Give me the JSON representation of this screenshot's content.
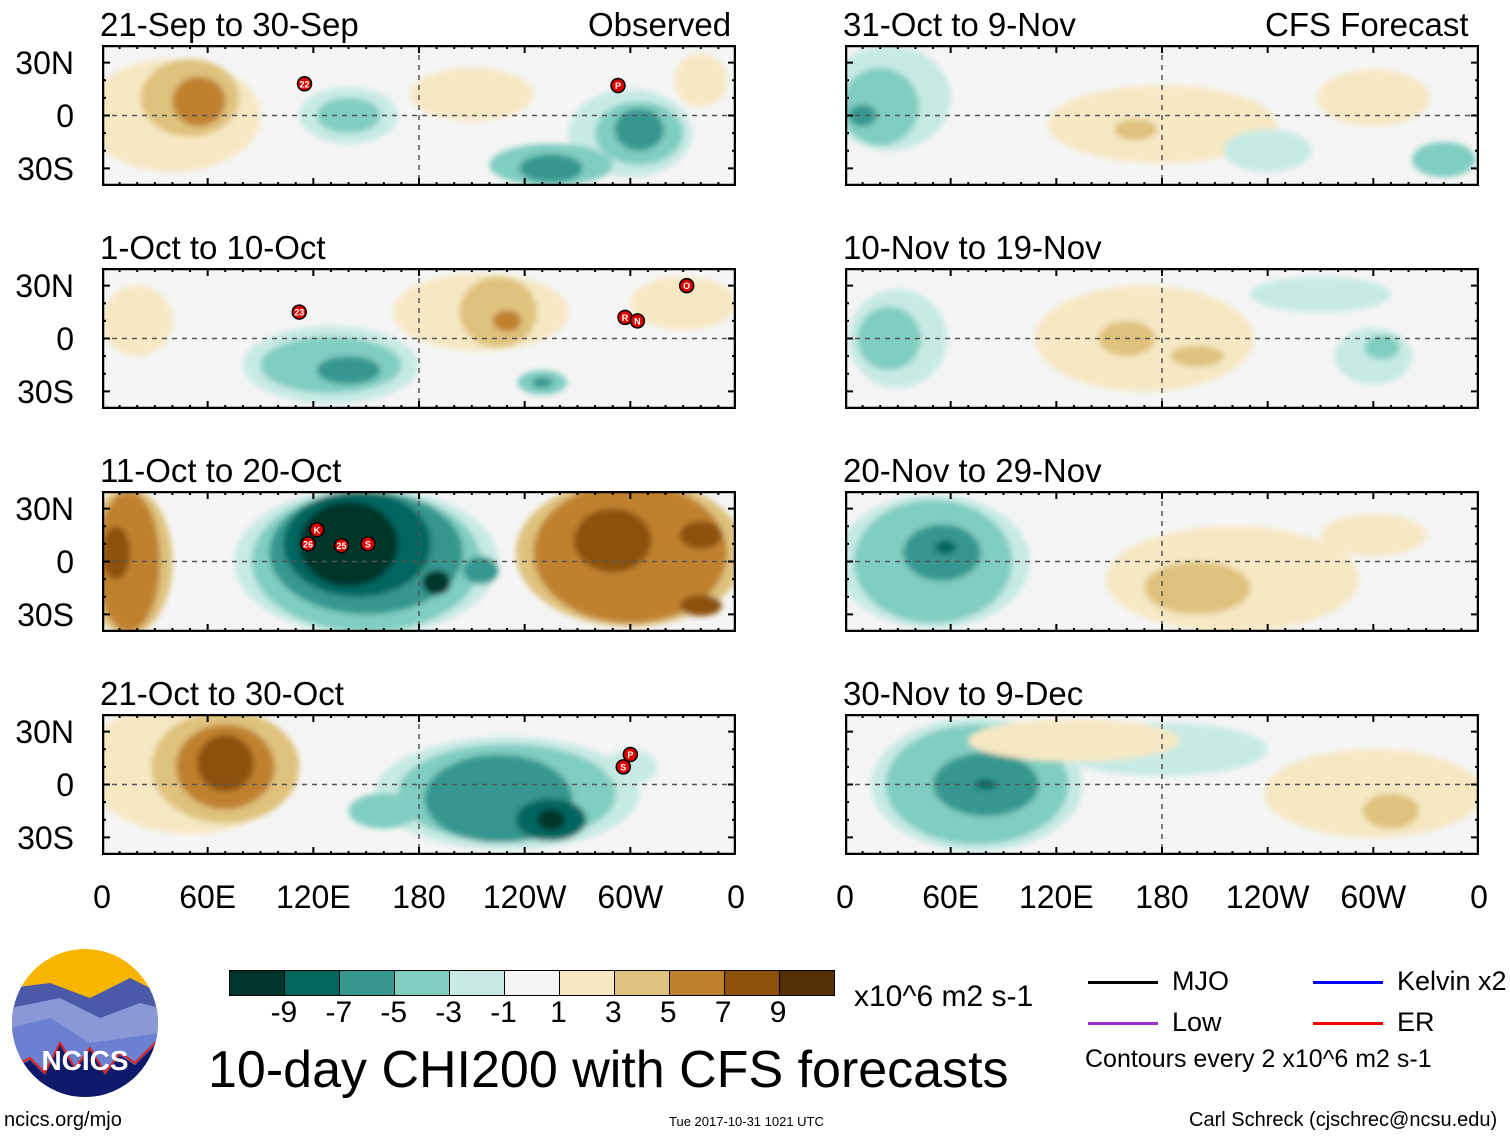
{
  "title": "10-day CHI200 with CFS forecasts",
  "column_labels": {
    "observed": "Observed",
    "forecast": "CFS Forecast"
  },
  "panels": [
    {
      "title": "21-Sep to 30-Sep",
      "storms": [
        {
          "id": "22",
          "lon": 115,
          "lat": 18
        },
        {
          "id": "P",
          "lon": 293,
          "lat": 17
        }
      ]
    },
    {
      "title": "1-Oct to 10-Oct",
      "storms": [
        {
          "id": "23",
          "lon": 112,
          "lat": 15
        },
        {
          "id": "R",
          "lon": 297,
          "lat": 12
        },
        {
          "id": "N",
          "lon": 304,
          "lat": 10
        },
        {
          "id": "O",
          "lon": 332,
          "lat": 30
        }
      ]
    },
    {
      "title": "11-Oct to 20-Oct",
      "storms": [
        {
          "id": "K",
          "lon": 122,
          "lat": 18
        },
        {
          "id": "26",
          "lon": 117,
          "lat": 10
        },
        {
          "id": "25",
          "lon": 136,
          "lat": 9
        },
        {
          "id": "S",
          "lon": 151,
          "lat": 10
        }
      ]
    },
    {
      "title": "21-Oct to 30-Oct",
      "storms": [
        {
          "id": "P",
          "lon": 300,
          "lat": 17
        },
        {
          "id": "S",
          "lon": 296,
          "lat": 10
        }
      ]
    },
    {
      "title": "31-Oct to 9-Nov",
      "storms": []
    },
    {
      "title": "10-Nov to 19-Nov",
      "storms": []
    },
    {
      "title": "20-Nov to 29-Nov",
      "storms": []
    },
    {
      "title": "30-Nov to 9-Dec",
      "storms": []
    }
  ],
  "y_ticks": [
    "30N",
    "0",
    "30S"
  ],
  "x_ticks": [
    "0",
    "60E",
    "120E",
    "180",
    "120W",
    "60W",
    "0"
  ],
  "colorbar": {
    "colors": [
      "#01352c",
      "#01665e",
      "#35978f",
      "#80cdc1",
      "#c7eae5",
      "#f5f5f5",
      "#f6e8c3",
      "#dfc27d",
      "#bf812d",
      "#8c510a",
      "#543005"
    ],
    "labels": [
      "-9",
      "-7",
      "-5",
      "-3",
      "-1",
      "1",
      "3",
      "5",
      "7",
      "9"
    ],
    "units": "x10^6 m2 s-1"
  },
  "legend": [
    {
      "label": "MJO",
      "color": "#000000"
    },
    {
      "label": "Kelvin x2",
      "color": "#0000ff"
    },
    {
      "label": "Low",
      "color": "#9933cc"
    },
    {
      "label": "ER",
      "color": "#ff0000"
    }
  ],
  "contour_note": "Contours every 2 x10^6 m2 s-1",
  "logo": {
    "text": "NCICS"
  },
  "footer": {
    "url": "ncics.org/mjo",
    "timestamp": "Tue 2017-10-31 1021 UTC",
    "author": "Carl Schreck (cjschrec@ncsu.edu)"
  }
}
